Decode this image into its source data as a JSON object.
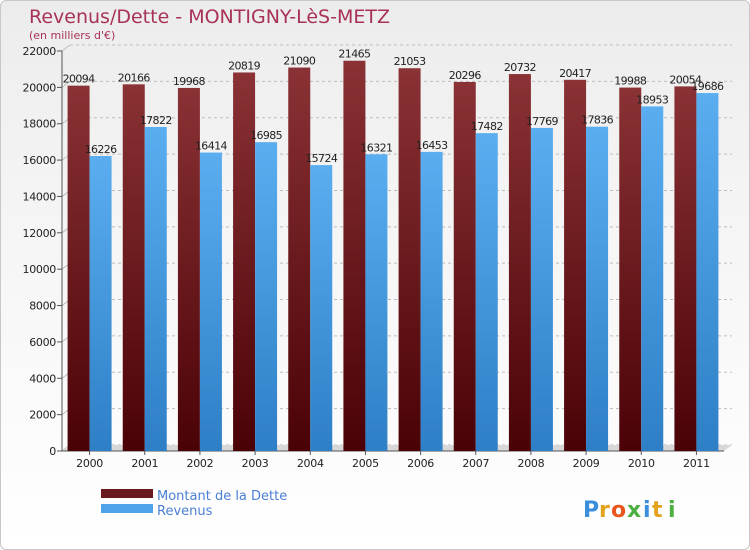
{
  "chart_data": {
    "type": "bar",
    "title": "Revenus/Dette - MONTIGNY-LèS-METZ",
    "subtitle": "(en milliers d'€)",
    "categories": [
      "2000",
      "2001",
      "2002",
      "2003",
      "2004",
      "2005",
      "2006",
      "2007",
      "2008",
      "2009",
      "2010",
      "2011"
    ],
    "series": [
      {
        "name": "Montant de la Dette",
        "color": "#7a2226",
        "values": [
          20094,
          20166,
          19968,
          20819,
          21090,
          21465,
          21053,
          20296,
          20732,
          20417,
          19988,
          20054
        ]
      },
      {
        "name": "Revenus",
        "color": "#4fa3e8",
        "values": [
          16226,
          17822,
          16414,
          16985,
          15724,
          16321,
          16453,
          17482,
          17769,
          17836,
          18953,
          19686
        ]
      }
    ],
    "ylim": [
      0,
      22000
    ],
    "yticks": [
      0,
      2000,
      4000,
      6000,
      8000,
      10000,
      12000,
      14000,
      16000,
      18000,
      20000,
      22000
    ],
    "grid": true,
    "legend_position": "bottom-left",
    "data_labels": true
  },
  "logo": {
    "text": "Proxiti",
    "letter_colors": [
      "#3a8edb",
      "#e2a21b",
      "#e8551f",
      "#4caf3f",
      "#3a8edb",
      "#e2a21b",
      "#4caf3f"
    ]
  }
}
